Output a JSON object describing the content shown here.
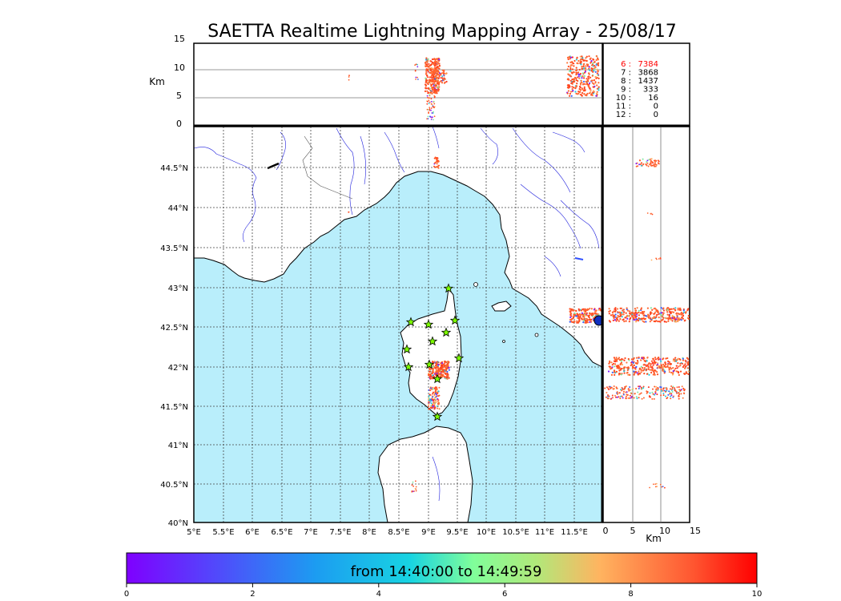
{
  "title": "SAETTA Realtime Lightning Mapping Array - 25/08/17",
  "top_panel": {
    "ylabel": "Km",
    "yticks": [
      "15",
      "10",
      "5",
      "0"
    ],
    "station_counts": [
      {
        "label": "6  :",
        "value": "7384",
        "color": "#ff0000"
      },
      {
        "label": "7  :",
        "value": "3868",
        "color": "#000000"
      },
      {
        "label": "8  :",
        "value": "1437",
        "color": "#000000"
      },
      {
        "label": "9  :",
        "value": "333",
        "color": "#000000"
      },
      {
        "label": "10  :",
        "value": "16",
        "color": "#000000"
      },
      {
        "label": "11  :",
        "value": "0",
        "color": "#000000"
      },
      {
        "label": "12  :",
        "value": "0",
        "color": "#000000"
      }
    ]
  },
  "map": {
    "lat_labels": [
      "44.5°N",
      "44°N",
      "43.5°N",
      "43°N",
      "42.5°N",
      "42°N",
      "41.5°N",
      "41°N",
      "40.5°N",
      "40°N"
    ],
    "lon_labels": [
      "5°E",
      "5.5°E",
      "6°E",
      "6.5°E",
      "7°E",
      "7.5°E",
      "8°E",
      "8.5°E",
      "9°E",
      "9.5°E",
      "10°E",
      "10.5°E",
      "11°E",
      "11.5°E"
    ],
    "sea_color": "#b9eefb",
    "land_color": "#ffffff"
  },
  "side_panel": {
    "xlabel": "Km",
    "xticks": [
      "0",
      "5",
      "10",
      "15"
    ]
  },
  "colorbar": {
    "label": "from 14:40:00 to 14:49:59",
    "ticks": [
      "0",
      "2",
      "4",
      "6",
      "8",
      "10"
    ]
  }
}
